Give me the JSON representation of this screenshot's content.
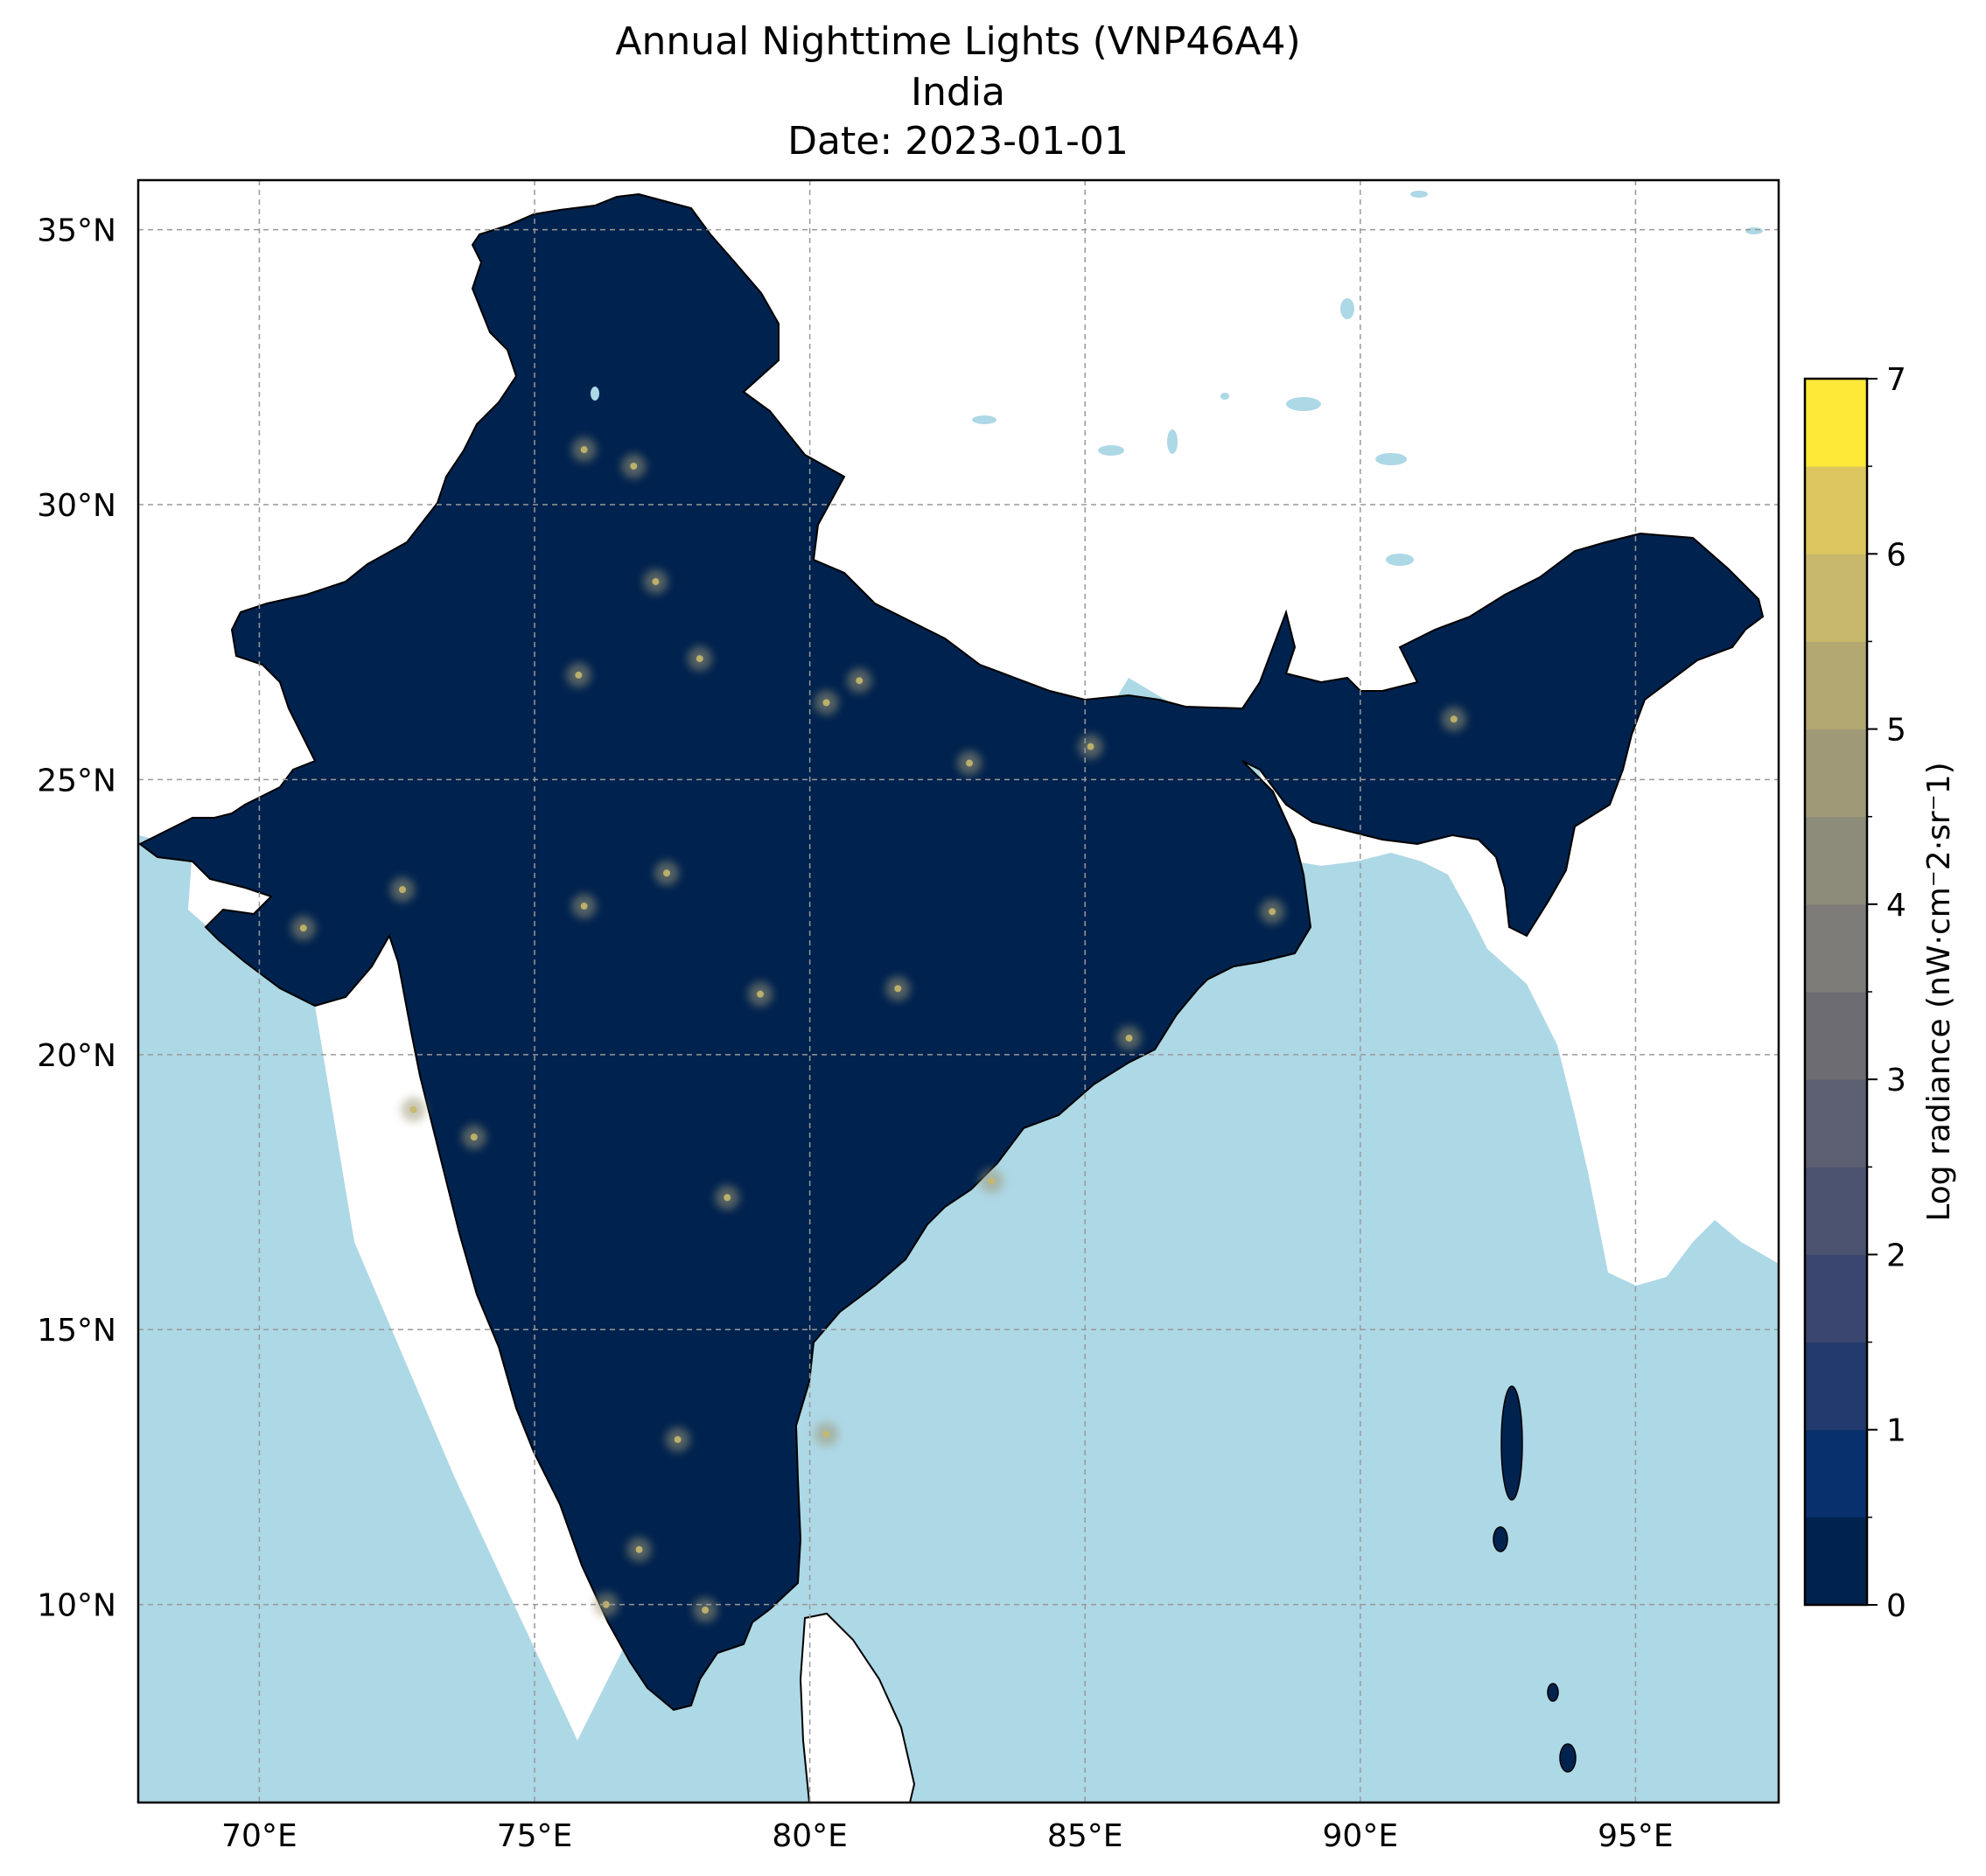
{
  "title": {
    "line1": "Annual Nighttime Lights (VNP46A4)",
    "line2": "India",
    "line3": "Date: 2023-01-01"
  },
  "map": {
    "region": "India",
    "projection": "PlateCarree",
    "lon_range": [
      67.8,
      97.6
    ],
    "lat_range": [
      6.4,
      35.9
    ],
    "lon_ticks": [
      70,
      75,
      80,
      85,
      90,
      95
    ],
    "lat_ticks": [
      10,
      15,
      20,
      25,
      30,
      35
    ],
    "lon_tick_labels": [
      "70°E",
      "75°E",
      "80°E",
      "85°E",
      "90°E",
      "95°E"
    ],
    "lat_tick_labels": [
      "10°N",
      "15°N",
      "20°N",
      "25°N",
      "30°N",
      "35°N"
    ],
    "gridlines": true,
    "ocean_color": "#add8e6",
    "land_background_color": "#ffffff",
    "data_low_color": "#00224e",
    "bright_cities": [
      {
        "lon": 77.2,
        "lat": 28.6
      },
      {
        "lon": 72.8,
        "lat": 19.0
      },
      {
        "lon": 88.4,
        "lat": 22.6
      },
      {
        "lon": 77.6,
        "lat": 13.0
      },
      {
        "lon": 78.5,
        "lat": 17.4
      },
      {
        "lon": 80.3,
        "lat": 13.1
      },
      {
        "lon": 72.6,
        "lat": 23.0
      },
      {
        "lon": 75.8,
        "lat": 26.9
      },
      {
        "lon": 80.9,
        "lat": 26.8
      },
      {
        "lon": 73.9,
        "lat": 18.5
      },
      {
        "lon": 85.1,
        "lat": 25.6
      },
      {
        "lon": 79.1,
        "lat": 21.1
      },
      {
        "lon": 75.9,
        "lat": 22.7
      },
      {
        "lon": 77.4,
        "lat": 23.3
      },
      {
        "lon": 76.8,
        "lat": 30.7
      },
      {
        "lon": 75.9,
        "lat": 31.0
      },
      {
        "lon": 82.9,
        "lat": 25.3
      },
      {
        "lon": 80.3,
        "lat": 26.4
      },
      {
        "lon": 78.0,
        "lat": 27.2
      },
      {
        "lon": 85.8,
        "lat": 20.3
      },
      {
        "lon": 76.3,
        "lat": 10.0
      },
      {
        "lon": 76.9,
        "lat": 11.0
      },
      {
        "lon": 83.3,
        "lat": 17.7
      },
      {
        "lon": 91.7,
        "lat": 26.1
      },
      {
        "lon": 81.6,
        "lat": 21.2
      },
      {
        "lon": 70.8,
        "lat": 22.3
      },
      {
        "lon": 78.1,
        "lat": 9.9
      }
    ]
  },
  "colorbar": {
    "label": "Log radiance (nW·cm⁻2·sr⁻1)",
    "min": 0,
    "max": 7,
    "ticks": [
      0,
      1,
      2,
      3,
      4,
      5,
      6,
      7
    ],
    "tick_labels": [
      "0",
      "1",
      "2",
      "3",
      "4",
      "5",
      "6",
      "7"
    ],
    "bins": 14,
    "colors": [
      "#00224e",
      "#07306d",
      "#233a6e",
      "#3a466f",
      "#4c5370",
      "#5c5f72",
      "#6c6c72",
      "#7c7b78",
      "#8d8b79",
      "#9f9977",
      "#b3a772",
      "#c7b86b",
      "#ddc65f",
      "#fee838"
    ]
  }
}
